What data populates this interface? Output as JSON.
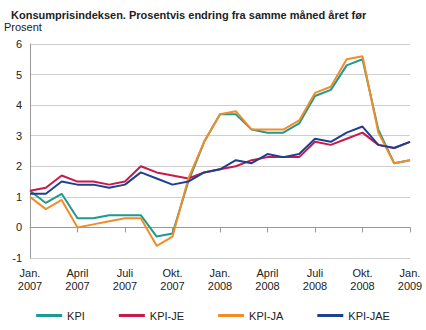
{
  "chart_data": {
    "type": "line",
    "title": "Konsumprisindeksen. Prosentvis endring fra samme måned året før",
    "y_label": "Prosent",
    "categories": [
      "Jan.\n2007",
      null,
      null,
      "April\n2007",
      null,
      null,
      "Juli\n2007",
      null,
      null,
      "Okt.\n2007",
      null,
      null,
      "Jan.\n2008",
      null,
      null,
      "April\n2008",
      null,
      null,
      "Juli\n2008",
      null,
      null,
      "Okt.\n2008",
      null,
      null,
      "Jan.\n2009"
    ],
    "series": [
      {
        "name": "KPI",
        "color": "#1e9a8e",
        "values": [
          1.2,
          0.8,
          1.1,
          0.3,
          0.3,
          0.4,
          0.4,
          0.4,
          -0.3,
          -0.2,
          1.5,
          2.8,
          3.7,
          3.7,
          3.2,
          3.1,
          3.1,
          3.4,
          4.3,
          4.5,
          5.3,
          5.5,
          3.2,
          2.1,
          2.2
        ]
      },
      {
        "name": "KPI-JE",
        "color": "#c8194b",
        "values": [
          1.2,
          1.3,
          1.7,
          1.5,
          1.5,
          1.4,
          1.5,
          2.0,
          1.8,
          1.7,
          1.6,
          1.8,
          1.9,
          2.0,
          2.2,
          2.3,
          2.3,
          2.3,
          2.8,
          2.7,
          2.9,
          3.1,
          2.7,
          2.6,
          2.8
        ]
      },
      {
        "name": "KPI-JA",
        "color": "#f28c28",
        "values": [
          1.0,
          0.6,
          0.9,
          0.0,
          0.1,
          0.2,
          0.3,
          0.3,
          -0.6,
          -0.3,
          1.6,
          2.8,
          3.7,
          3.8,
          3.2,
          3.2,
          3.2,
          3.5,
          4.4,
          4.6,
          5.5,
          5.6,
          3.1,
          2.1,
          2.2
        ]
      },
      {
        "name": "KPI-JAE",
        "color": "#1f3f8f",
        "values": [
          1.1,
          1.1,
          1.5,
          1.4,
          1.4,
          1.3,
          1.4,
          1.8,
          1.6,
          1.4,
          1.5,
          1.8,
          1.9,
          2.2,
          2.1,
          2.4,
          2.3,
          2.4,
          2.9,
          2.8,
          3.1,
          3.3,
          2.7,
          2.6,
          2.8
        ]
      }
    ],
    "ylim": [
      -1,
      6
    ],
    "yticks": [
      -1,
      0,
      1,
      2,
      3,
      4,
      5,
      6
    ],
    "grid": true,
    "legend": "bottom"
  }
}
